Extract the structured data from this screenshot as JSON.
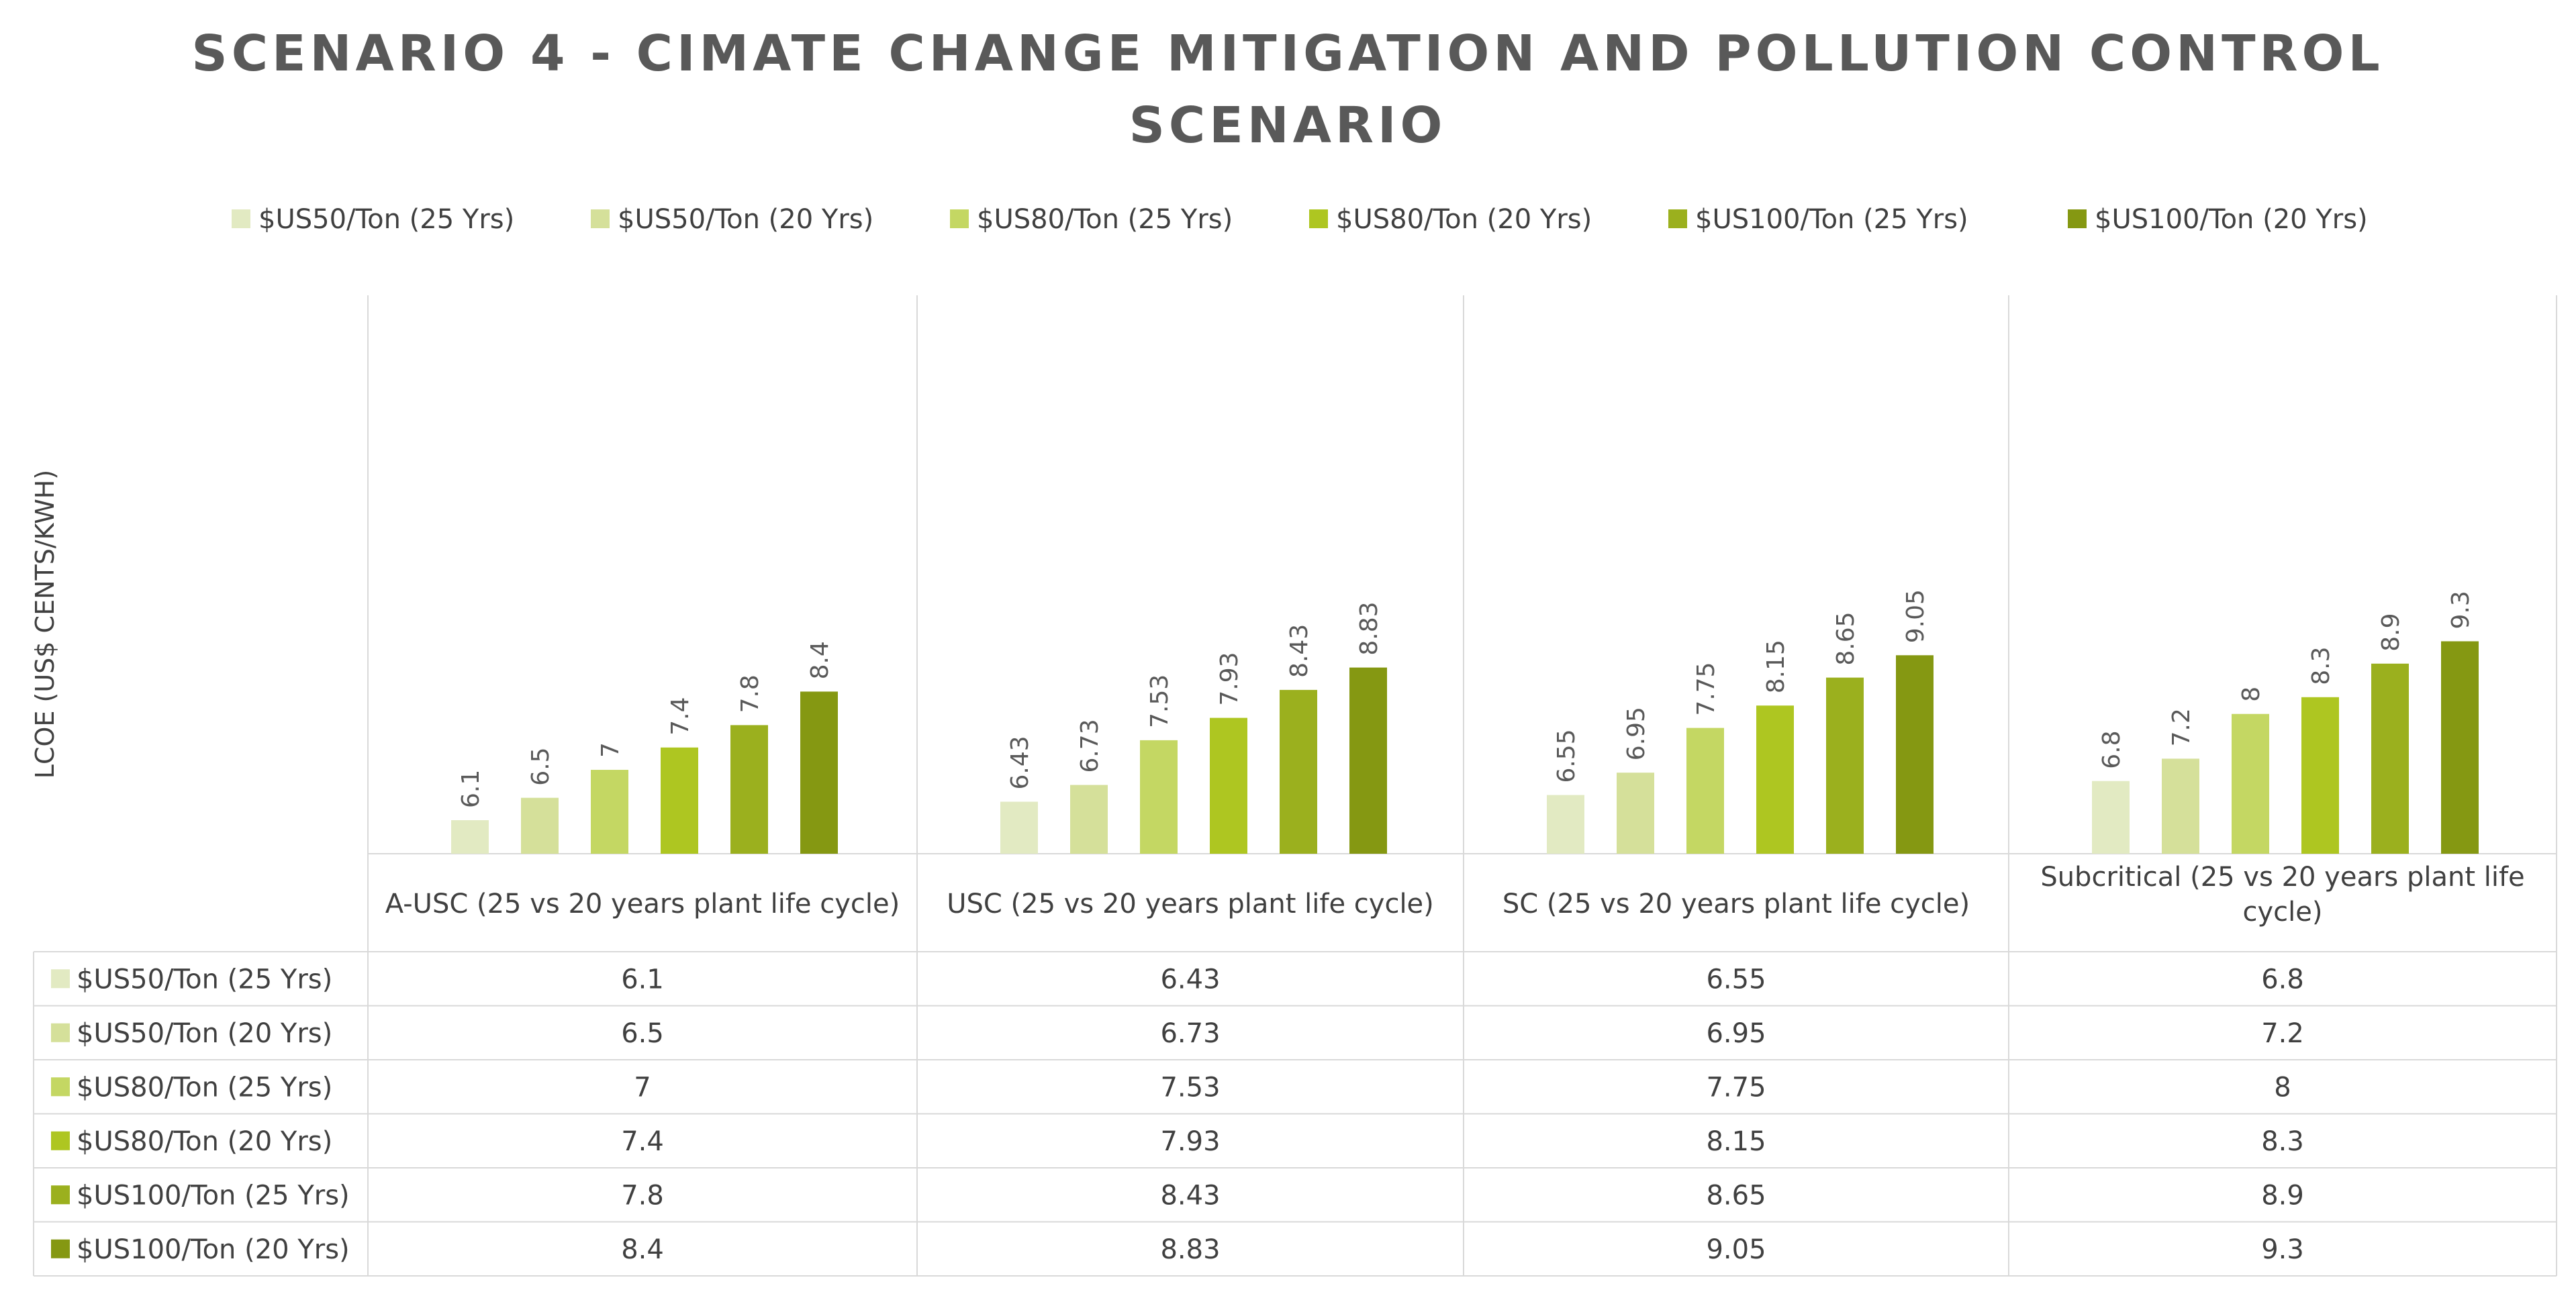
{
  "chart_data": {
    "type": "bar",
    "title": "SCENARIO 4 - CIMATE CHANGE MITIGATION AND POLLUTION CONTROL SCENARIO",
    "title_lines": [
      "SCENARIO 4 - CIMATE CHANGE MITIGATION AND POLLUTION CONTROL",
      "SCENARIO"
    ],
    "ylabel": "LCOE (US$ CENTS/KWH)",
    "xlabel": "",
    "ylim": [
      0,
      10
    ],
    "legend_position": "top",
    "grid": false,
    "data_table": true,
    "categories": [
      "A-USC (25 vs 20 years plant life cycle)",
      "USC (25 vs 20 years plant life cycle)",
      "SC (25 vs 20 years plant life cycle)",
      "Subcritical (25 vs 20 years plant life cycle)"
    ],
    "category_lines": [
      [
        "A-USC (25 vs 20 years plant life cycle)"
      ],
      [
        "USC (25 vs 20 years plant life cycle)"
      ],
      [
        "SC (25 vs 20 years plant life cycle)"
      ],
      [
        "Subcritical (25 vs 20 years plant life",
        "cycle)"
      ]
    ],
    "series": [
      {
        "name": "$US50/Ton (25 Yrs)",
        "color": "#e2eac2",
        "values": [
          6.1,
          6.43,
          6.55,
          6.8
        ],
        "labels": [
          "6.1",
          "6.43",
          "6.55",
          "6.8"
        ]
      },
      {
        "name": "$US50/Ton (20 Yrs)",
        "color": "#d5e09a",
        "values": [
          6.5,
          6.73,
          6.95,
          7.2
        ],
        "labels": [
          "6.5",
          "6.73",
          "6.95",
          "7.2"
        ]
      },
      {
        "name": "$US80/Ton (25 Yrs)",
        "color": "#c4d763",
        "values": [
          7,
          7.53,
          7.75,
          8
        ],
        "labels": [
          "7",
          "7.53",
          "7.75",
          "8"
        ]
      },
      {
        "name": "$US80/Ton (20 Yrs)",
        "color": "#aec621",
        "values": [
          7.4,
          7.93,
          8.15,
          8.3
        ],
        "labels": [
          "7.4",
          "7.93",
          "8.15",
          "8.3"
        ]
      },
      {
        "name": "$US100/Ton (25 Yrs)",
        "color": "#9bb01e",
        "values": [
          7.8,
          8.43,
          8.65,
          8.9
        ],
        "labels": [
          "7.8",
          "8.43",
          "8.65",
          "8.9"
        ]
      },
      {
        "name": "$US100/Ton (20 Yrs)",
        "color": "#859812",
        "values": [
          8.4,
          8.83,
          9.05,
          9.3
        ],
        "labels": [
          "8.4",
          "8.83",
          "9.05",
          "9.3"
        ]
      }
    ]
  }
}
